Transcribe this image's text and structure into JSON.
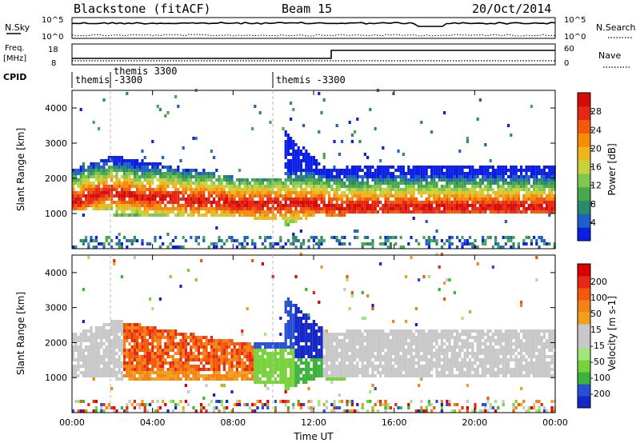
{
  "header": {
    "station": "Blackstone (fitACF)",
    "beam": "Beam 15",
    "date": "20/Oct/2014"
  },
  "noise_panel": {
    "left_label": "N.Sky",
    "left_top_tick": "10^5",
    "left_bottom_tick": "10^0",
    "right_top_tick": "10^5",
    "right_bottom_tick": "10^0",
    "right_label": "N.Search"
  },
  "freq_panel": {
    "left_label_top": "Freq.",
    "left_label_bottom": "[MHz]",
    "left_top_tick": "18",
    "left_bottom_tick": "8",
    "right_top_tick": "60",
    "right_bottom_tick": "0",
    "right_label": "Nave"
  },
  "cpid": {
    "label": "CPID",
    "segments": [
      {
        "text_line1": "themis",
        "text_line2": ""
      },
      {
        "text_line1": "themis 3300",
        "text_line2": "-3300"
      },
      {
        "text_line1": "themis -3300",
        "text_line2": ""
      }
    ]
  },
  "chart_data": [
    {
      "type": "heatmap",
      "name": "power",
      "ylabel": "Slant Range [km]",
      "xlabel": "Time UT",
      "ylim": [
        0,
        4500
      ],
      "xlim_hours": [
        0,
        24
      ],
      "y_ticks": [
        "1000",
        "2000",
        "3000",
        "4000"
      ],
      "x_ticks": [
        "00:00",
        "04:00",
        "08:00",
        "12:00",
        "16:00",
        "20:00",
        "00:00"
      ],
      "colorbar": {
        "label": "Power [dB]",
        "ticks": [
          "4",
          "8",
          "12",
          "16",
          "20",
          "24",
          "28"
        ],
        "colors": [
          "#0a1ee6",
          "#1e5fc8",
          "#2c8a6a",
          "#4aa84c",
          "#7cc850",
          "#c8d23c",
          "#f0b41e",
          "#f58c0a",
          "#f05a0a",
          "#e62814",
          "#d70a0a"
        ]
      }
    },
    {
      "type": "heatmap",
      "name": "velocity",
      "ylabel": "Slant Range [km]",
      "xlabel": "Time UT",
      "ylim": [
        0,
        4500
      ],
      "xlim_hours": [
        0,
        24
      ],
      "y_ticks": [
        "1000",
        "2000",
        "3000",
        "4000"
      ],
      "x_ticks": [
        "00:00",
        "04:00",
        "08:00",
        "12:00",
        "16:00",
        "20:00",
        "00:00"
      ],
      "colorbar": {
        "label": "Velocity [m s-1]",
        "ticks": [
          "200",
          "100",
          "50",
          "15",
          "-15",
          "-50",
          "-100",
          "-200"
        ],
        "colors": [
          "#1428c8",
          "#2850d2",
          "#3cb43c",
          "#78d23c",
          "#a0e678",
          "#c8c8c8",
          "#c8c8c8",
          "#f0a01e",
          "#f58214",
          "#f05a0a",
          "#e62814",
          "#dc0000"
        ]
      }
    }
  ],
  "axis_title": "Time UT"
}
